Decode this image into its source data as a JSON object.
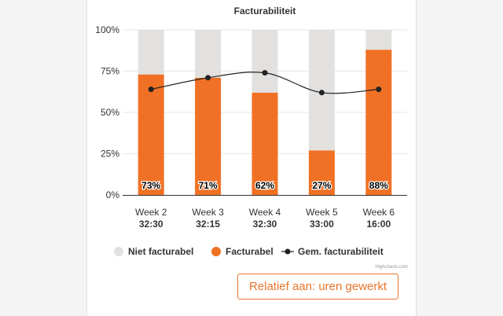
{
  "chart_data": {
    "type": "bar",
    "stacking": "percent",
    "title": "Facturabiliteit",
    "categories": [
      "Week 2",
      "Week 3",
      "Week 4",
      "Week 5",
      "Week 6"
    ],
    "category_sublabels": [
      "32:30",
      "32:15",
      "32:30",
      "33:00",
      "16:00"
    ],
    "ylim": [
      0,
      100
    ],
    "yticks": [
      "0%",
      "25%",
      "50%",
      "75%",
      "100%"
    ],
    "grid": true,
    "series": [
      {
        "name": "Niet facturabel",
        "type": "bar",
        "color": "#e3e1df",
        "values": [
          27,
          29,
          38,
          73,
          12
        ]
      },
      {
        "name": "Facturabel",
        "type": "bar",
        "color": "#f07125",
        "values": [
          73,
          71,
          62,
          27,
          88
        ],
        "data_labels": [
          "73%",
          "71%",
          "62%",
          "27%",
          "88%"
        ]
      },
      {
        "name": "Gem. facturabiliteit",
        "type": "line",
        "smooth": true,
        "color": "#222222",
        "values": [
          64,
          71,
          74,
          62,
          64
        ]
      }
    ],
    "legend_position": "bottom"
  },
  "credits": "Highcharts.com",
  "relative_button_label": "Relatief aan: uren gewerkt",
  "colors": {
    "accent": "#e8762c"
  }
}
